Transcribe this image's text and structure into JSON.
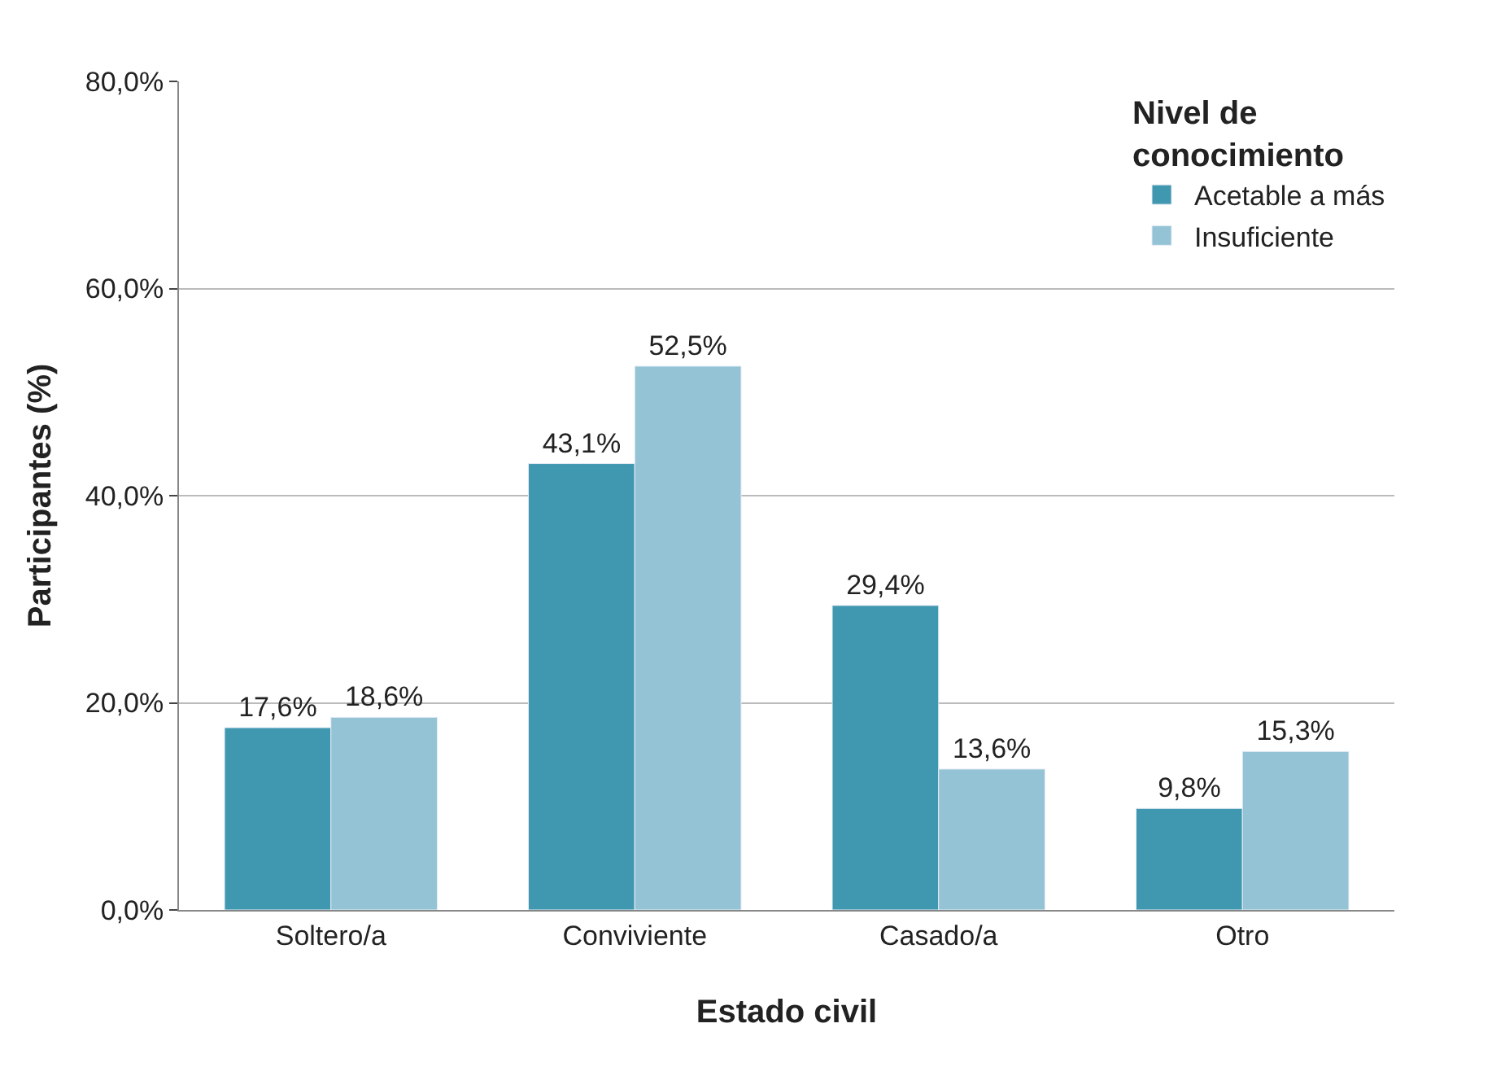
{
  "chart_data": {
    "type": "bar",
    "xlabel": "Estado civil",
    "ylabel": "Participantes (%)",
    "legend_title": "Nivel de conocimiento",
    "categories": [
      "Soltero/a",
      "Conviviente",
      "Casado/a",
      "Otro"
    ],
    "series": [
      {
        "name": "Acetable a más",
        "color": "#4097b0",
        "values": [
          17.6,
          43.1,
          29.4,
          9.8
        ],
        "value_labels": [
          "17,6%",
          "43,1%",
          "29,4%",
          "9,8%"
        ]
      },
      {
        "name": "Insuficiente",
        "color": "#93c3d5",
        "values": [
          18.6,
          52.5,
          13.6,
          15.3
        ],
        "value_labels": [
          "18,6%",
          "52,5%",
          "13,6%",
          "15,3%"
        ]
      }
    ],
    "ylim": [
      0,
      80
    ],
    "yticks": [
      {
        "value": 0,
        "label": "0,0%"
      },
      {
        "value": 20,
        "label": "20,0%"
      },
      {
        "value": 40,
        "label": "40,0%"
      },
      {
        "value": 60,
        "label": "60,0%"
      },
      {
        "value": 80,
        "label": "80,0%"
      }
    ],
    "grid": "y",
    "legend": "top right"
  }
}
